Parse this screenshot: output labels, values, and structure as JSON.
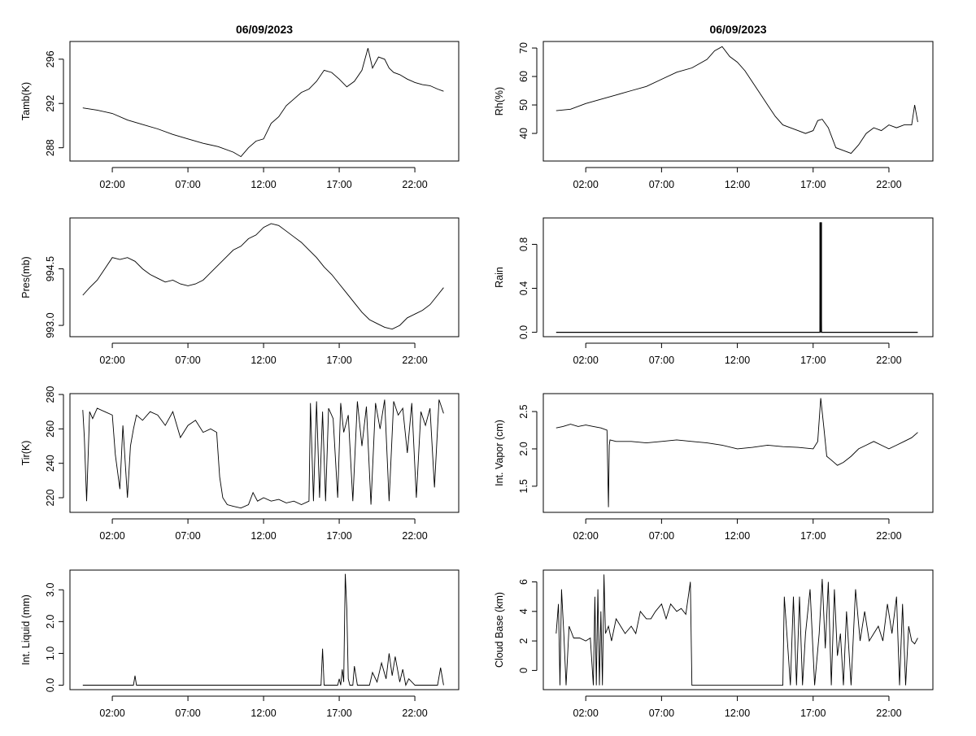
{
  "chart_data": [
    {
      "type": "line",
      "title": "06/09/2023",
      "xlabel": "",
      "ylabel": "Tamb(K)",
      "x_ticks": [
        "02:00",
        "07:00",
        "12:00",
        "17:00",
        "22:00"
      ],
      "yticks": [
        288,
        292,
        296
      ],
      "ylim": [
        286.8,
        297.6
      ],
      "x": [
        0.05,
        1,
        2,
        3,
        4,
        5,
        6,
        7,
        8,
        9,
        10,
        10.5,
        11,
        11.5,
        12,
        12.5,
        13,
        13.5,
        14,
        14.5,
        15,
        15.5,
        16,
        16.5,
        17,
        17.5,
        18,
        18.5,
        18.9,
        19.2,
        19.6,
        20,
        20.3,
        20.6,
        21,
        21.5,
        22,
        22.5,
        23,
        23.5,
        23.9
      ],
      "y": [
        291.6,
        291.4,
        291.1,
        290.5,
        290.1,
        289.7,
        289.2,
        288.8,
        288.4,
        288.1,
        287.6,
        287.2,
        288.0,
        288.6,
        288.8,
        290.2,
        290.8,
        291.8,
        292.4,
        293.0,
        293.3,
        294.0,
        295.0,
        294.8,
        294.2,
        293.5,
        294.0,
        295.0,
        297.0,
        295.2,
        296.2,
        296.0,
        295.2,
        294.8,
        294.6,
        294.2,
        293.9,
        293.7,
        293.6,
        293.3,
        293.1
      ]
    },
    {
      "type": "line",
      "title": "06/09/2023",
      "xlabel": "",
      "ylabel": "Rh(%)",
      "x_ticks": [
        "02:00",
        "07:00",
        "12:00",
        "17:00",
        "22:00"
      ],
      "yticks": [
        40,
        50,
        60,
        70
      ],
      "ylim": [
        30.3,
        72.3
      ],
      "x": [
        0.05,
        1,
        2,
        3,
        4,
        5,
        6,
        7,
        8,
        9,
        10,
        10.5,
        11,
        11.5,
        12,
        12.5,
        13,
        13.5,
        14,
        14.5,
        15,
        15.5,
        16,
        16.5,
        17,
        17.3,
        17.6,
        18,
        18.5,
        19,
        19.5,
        20,
        20.5,
        21,
        21.5,
        22,
        22.5,
        23,
        23.5,
        23.7,
        23.9
      ],
      "y": [
        48,
        48.5,
        50.5,
        52,
        53.5,
        55,
        56.5,
        59,
        61.5,
        63,
        66,
        69,
        70.5,
        67,
        65,
        62,
        58,
        54,
        50,
        46,
        43,
        42,
        41,
        40,
        41,
        44.5,
        45,
        42,
        35,
        34,
        33,
        36,
        40,
        42,
        41,
        43,
        42,
        43,
        43,
        50,
        44
      ]
    },
    {
      "type": "line",
      "xlabel": "",
      "ylabel": "Pres(mb)",
      "x_ticks": [
        "02:00",
        "07:00",
        "12:00",
        "17:00",
        "22:00"
      ],
      "yticks": [
        993.0,
        994.5
      ],
      "ytick_labels": [
        "993.0",
        "994.5"
      ],
      "ylim": [
        992.7,
        995.85
      ],
      "x": [
        0.05,
        0.5,
        1,
        1.5,
        2,
        2.5,
        3,
        3.5,
        4,
        4.5,
        5,
        5.5,
        6,
        6.5,
        7,
        7.5,
        8,
        8.5,
        9,
        9.5,
        10,
        10.5,
        11,
        11.5,
        12,
        12.5,
        13,
        13.5,
        14,
        14.5,
        15,
        15.5,
        16,
        16.5,
        17,
        17.5,
        18,
        18.5,
        19,
        19.5,
        20,
        20.5,
        21,
        21.5,
        22,
        22.5,
        23,
        23.5,
        23.9
      ],
      "y": [
        993.8,
        994.0,
        994.2,
        994.5,
        994.8,
        994.75,
        994.8,
        994.7,
        994.5,
        994.35,
        994.25,
        994.15,
        994.2,
        994.1,
        994.05,
        994.1,
        994.2,
        994.4,
        994.6,
        994.8,
        995.0,
        995.1,
        995.3,
        995.4,
        995.6,
        995.7,
        995.65,
        995.5,
        995.35,
        995.2,
        995.0,
        994.8,
        994.55,
        994.35,
        994.1,
        993.85,
        993.6,
        993.35,
        993.15,
        993.05,
        992.95,
        992.9,
        993.0,
        993.2,
        993.3,
        993.4,
        993.55,
        993.8,
        994.0
      ]
    },
    {
      "type": "line",
      "xlabel": "",
      "ylabel": "Rain",
      "x_ticks": [
        "02:00",
        "07:00",
        "12:00",
        "17:00",
        "22:00"
      ],
      "yticks": [
        0.0,
        0.4,
        0.8
      ],
      "ytick_labels": [
        "0.0",
        "0.4",
        "0.8"
      ],
      "ylim": [
        -0.04,
        1.04
      ],
      "x": [
        0.05,
        17.45,
        17.5,
        17.55,
        23.9
      ],
      "y": [
        0,
        0,
        1,
        0,
        0
      ]
    },
    {
      "type": "line",
      "xlabel": "",
      "ylabel": "Tir(K)",
      "x_ticks": [
        "02:00",
        "07:00",
        "12:00",
        "17:00",
        "22:00"
      ],
      "yticks": [
        220,
        240,
        260,
        280
      ],
      "ylim": [
        211.5,
        280.5
      ],
      "x": [
        0.05,
        0.15,
        0.3,
        0.5,
        0.7,
        1.0,
        1.5,
        2.0,
        2.2,
        2.5,
        2.7,
        3.0,
        3.2,
        3.4,
        3.6,
        4.0,
        4.5,
        5.0,
        5.5,
        6.0,
        6.5,
        7.0,
        7.5,
        8.0,
        8.5,
        8.9,
        9.1,
        9.3,
        9.6,
        10.0,
        10.5,
        11.0,
        11.3,
        11.6,
        12.0,
        12.5,
        13.0,
        13.5,
        14.0,
        14.5,
        15.0,
        15.1,
        15.3,
        15.5,
        15.7,
        15.9,
        16.1,
        16.3,
        16.6,
        16.9,
        17.1,
        17.3,
        17.6,
        17.9,
        18.2,
        18.5,
        18.8,
        19.1,
        19.4,
        19.7,
        20.0,
        20.3,
        20.6,
        20.9,
        21.2,
        21.5,
        21.8,
        22.1,
        22.4,
        22.7,
        23.0,
        23.3,
        23.6,
        23.9
      ],
      "y": [
        271,
        255,
        218,
        270,
        266,
        272,
        270,
        268,
        245,
        225,
        262,
        220,
        250,
        260,
        268,
        265,
        270,
        268,
        262,
        270,
        255,
        262,
        265,
        258,
        260,
        258,
        232,
        220,
        216,
        215,
        214,
        216,
        223,
        218,
        220,
        218,
        219,
        217,
        218,
        216,
        218,
        275,
        218,
        276,
        220,
        270,
        218,
        272,
        266,
        220,
        275,
        258,
        268,
        218,
        276,
        250,
        273,
        216,
        275,
        260,
        277,
        218,
        276,
        268,
        272,
        246,
        275,
        220,
        270,
        262,
        272,
        226,
        277,
        269
      ]
    },
    {
      "type": "line",
      "xlabel": "",
      "ylabel": "Int. Vapor (cm)",
      "x_ticks": [
        "02:00",
        "07:00",
        "12:00",
        "17:00",
        "22:00"
      ],
      "yticks": [
        1.5,
        2.0,
        2.5
      ],
      "ytick_labels": [
        "1.5",
        "2.0",
        "2.5"
      ],
      "ylim": [
        1.15,
        2.74
      ],
      "x": [
        0.05,
        0.5,
        1,
        1.5,
        2,
        2.5,
        3,
        3.4,
        3.5,
        3.55,
        3.6,
        4,
        5,
        6,
        7,
        8,
        9,
        10,
        11,
        12,
        13,
        14,
        15,
        16,
        17,
        17.3,
        17.5,
        17.7,
        17.9,
        18.2,
        18.6,
        19,
        19.5,
        20,
        20.5,
        21,
        21.5,
        22,
        22.5,
        23,
        23.5,
        23.9
      ],
      "y": [
        2.28,
        2.3,
        2.33,
        2.3,
        2.32,
        2.3,
        2.28,
        2.25,
        1.22,
        2.05,
        2.12,
        2.1,
        2.1,
        2.08,
        2.1,
        2.12,
        2.1,
        2.08,
        2.05,
        2.0,
        2.02,
        2.05,
        2.03,
        2.02,
        2.0,
        2.1,
        2.68,
        2.3,
        1.9,
        1.85,
        1.78,
        1.82,
        1.9,
        2.0,
        2.05,
        2.1,
        2.05,
        2.0,
        2.05,
        2.1,
        2.15,
        2.22
      ]
    },
    {
      "type": "line",
      "xlabel": "",
      "ylabel": "Int. Liquid (mm)",
      "x_ticks": [
        "02:00",
        "07:00",
        "12:00",
        "17:00",
        "22:00"
      ],
      "yticks": [
        0.0,
        1.0,
        2.0,
        3.0
      ],
      "ytick_labels": [
        "0.0",
        "1.0",
        "2.0",
        "3.0"
      ],
      "ylim": [
        -0.14,
        3.62
      ],
      "x": [
        0.05,
        3.4,
        3.5,
        3.6,
        15.8,
        15.9,
        16.0,
        16.9,
        17.0,
        17.1,
        17.2,
        17.3,
        17.4,
        17.5,
        17.6,
        17.7,
        17.9,
        18.0,
        18.2,
        19.0,
        19.2,
        19.5,
        19.8,
        20.1,
        20.3,
        20.5,
        20.7,
        21.0,
        21.2,
        21.4,
        21.6,
        22.0,
        22.8,
        23.5,
        23.7,
        23.9
      ],
      "y": [
        0,
        0,
        0.3,
        0,
        0,
        1.15,
        0,
        0,
        0.2,
        0,
        0.5,
        0.1,
        3.5,
        2.4,
        0.2,
        0,
        0,
        0.6,
        0,
        0,
        0.4,
        0.1,
        0.7,
        0.2,
        1.0,
        0.3,
        0.9,
        0.1,
        0.5,
        0,
        0.2,
        0,
        0,
        0,
        0.55,
        0
      ]
    },
    {
      "type": "line",
      "xlabel": "",
      "ylabel": "Cloud Base (km)",
      "x_ticks": [
        "02:00",
        "07:00",
        "12:00",
        "17:00",
        "22:00"
      ],
      "yticks": [
        0,
        2,
        4,
        6
      ],
      "ylim": [
        -1.3,
        6.8
      ],
      "x": [
        0.05,
        0.2,
        0.3,
        0.4,
        0.55,
        0.7,
        0.9,
        1.2,
        1.6,
        2.0,
        2.3,
        2.5,
        2.6,
        2.7,
        2.8,
        2.9,
        3.0,
        3.1,
        3.2,
        3.3,
        3.5,
        3.7,
        4.0,
        4.3,
        4.6,
        5.0,
        5.3,
        5.6,
        6.0,
        6.3,
        6.6,
        7.0,
        7.3,
        7.6,
        8.0,
        8.3,
        8.6,
        8.9,
        9.0,
        15.0,
        15.1,
        15.3,
        15.5,
        15.7,
        15.9,
        16.1,
        16.3,
        16.5,
        16.8,
        17.1,
        17.4,
        17.6,
        17.8,
        18.0,
        18.2,
        18.4,
        18.6,
        18.8,
        19.0,
        19.2,
        19.5,
        19.8,
        20.1,
        20.4,
        20.7,
        21.0,
        21.3,
        21.6,
        21.9,
        22.2,
        22.5,
        22.7,
        22.9,
        23.1,
        23.3,
        23.5,
        23.7,
        23.9
      ],
      "y": [
        2.5,
        4.5,
        -1,
        5.5,
        2.5,
        -1,
        3.0,
        2.2,
        2.2,
        2.0,
        2.2,
        -1,
        5.0,
        -1,
        5.5,
        -1,
        4.0,
        -1,
        6.5,
        2.5,
        3.0,
        2.0,
        3.5,
        3.0,
        2.5,
        3.0,
        2.5,
        4.0,
        3.5,
        3.5,
        4.0,
        4.5,
        3.5,
        4.5,
        4.0,
        4.2,
        3.8,
        6.0,
        -1,
        -1,
        5.0,
        2.0,
        -1,
        5.0,
        -1,
        5.0,
        -1,
        2.5,
        5.5,
        -1,
        2.5,
        6.2,
        1.5,
        6.0,
        -1,
        5.5,
        1.0,
        2.5,
        -1,
        4.0,
        -1,
        5.5,
        2.0,
        4.0,
        2.0,
        2.5,
        3.0,
        2.0,
        4.5,
        2.5,
        5.0,
        -1,
        4.5,
        -1,
        3.0,
        2.0,
        1.8,
        2.2
      ]
    }
  ]
}
